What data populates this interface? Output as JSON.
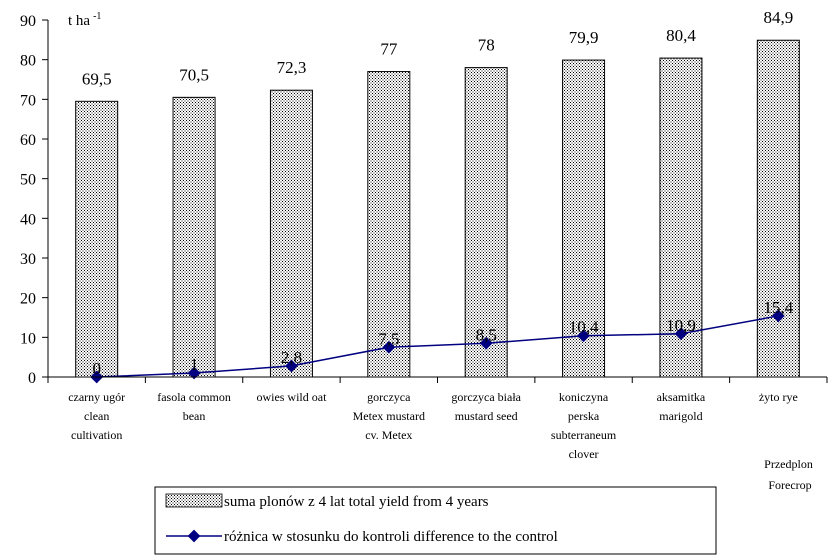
{
  "chart_data": {
    "type": "bar",
    "unit_label": "t ha",
    "unit_exponent": "-1",
    "xlabel": [
      "Przedplon",
      "Forecrop"
    ],
    "ylim": [
      0,
      90
    ],
    "y_ticks": [
      "0",
      "10",
      "20",
      "30",
      "40",
      "50",
      "60",
      "70",
      "80",
      "90"
    ],
    "categories": [
      [
        "czarny ugór",
        "clean",
        "cultivation"
      ],
      [
        "fasola common",
        "bean"
      ],
      [
        "owies wild oat"
      ],
      [
        "gorczyca",
        "Metex mustard",
        "cv. Metex"
      ],
      [
        "gorczyca biała",
        "mustard seed"
      ],
      [
        "koniczyna",
        "perska",
        "subterraneum",
        "clover"
      ],
      [
        "aksamitka",
        "marigold"
      ],
      [
        "żyto rye"
      ]
    ],
    "series": [
      {
        "name": "suma plonów z 4 lat total yield from 4 years",
        "kind": "bar",
        "values": [
          69.5,
          70.5,
          72.3,
          77,
          78,
          79.9,
          80.4,
          84.9
        ],
        "labels": [
          "69,5",
          "70,5",
          "72,3",
          "77",
          "78",
          "79,9",
          "80,4",
          "84,9"
        ],
        "color": "#000000"
      },
      {
        "name": "różnica w stosunku do kontroli difference to the control",
        "kind": "line",
        "values": [
          0,
          1,
          2.8,
          7.5,
          8.5,
          10.4,
          10.9,
          15.4
        ],
        "labels": [
          "0",
          "1",
          "2,8",
          "7,5",
          "8,5",
          "10,4",
          "10,9",
          "15,4"
        ],
        "color": "#000080"
      }
    ],
    "grid": false,
    "legend_position": "bottom"
  }
}
